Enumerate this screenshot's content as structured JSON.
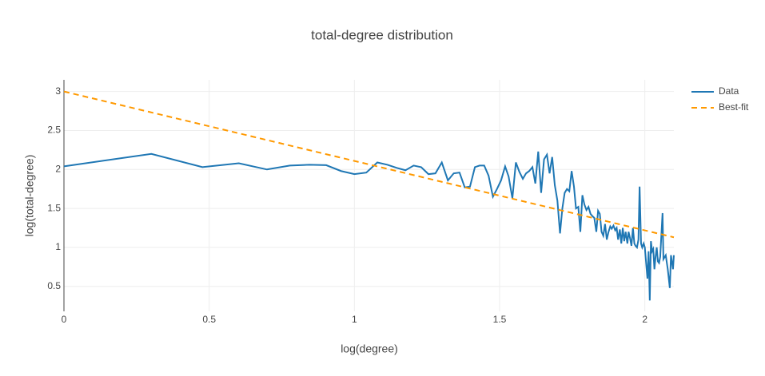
{
  "chart_data": {
    "type": "line",
    "title": "total-degree distribution",
    "x_label": "log(degree)",
    "y_label": "log(total-degree)",
    "xlim": [
      0,
      2.1
    ],
    "ylim": [
      0.18,
      3.15
    ],
    "xticks": [
      0,
      0.5,
      1,
      1.5,
      2
    ],
    "yticks": [
      0.5,
      1,
      1.5,
      2,
      2.5,
      3
    ],
    "grid": true,
    "legend": "top-right",
    "series": [
      {
        "name": "Data",
        "color": "#1f77b4",
        "dash": false,
        "x": [
          0,
          0.301,
          0.477,
          0.602,
          0.699,
          0.778,
          0.845,
          0.903,
          0.954,
          1,
          1.041,
          1.079,
          1.114,
          1.146,
          1.176,
          1.204,
          1.23,
          1.255,
          1.279,
          1.301,
          1.322,
          1.342,
          1.362,
          1.38,
          1.398,
          1.415,
          1.431,
          1.447,
          1.462,
          1.477,
          1.491,
          1.505,
          1.519,
          1.531,
          1.544,
          1.556,
          1.568,
          1.58,
          1.591,
          1.602,
          1.613,
          1.623,
          1.633,
          1.643,
          1.653,
          1.663,
          1.672,
          1.681,
          1.69,
          1.699,
          1.708,
          1.716,
          1.724,
          1.732,
          1.74,
          1.748,
          1.756,
          1.763,
          1.771,
          1.778,
          1.785,
          1.792,
          1.799,
          1.806,
          1.813,
          1.82,
          1.826,
          1.833,
          1.839,
          1.845,
          1.851,
          1.857,
          1.863,
          1.869,
          1.875,
          1.881,
          1.886,
          1.892,
          1.898,
          1.903,
          1.908,
          1.914,
          1.919,
          1.924,
          1.929,
          1.934,
          1.94,
          1.944,
          1.949,
          1.954,
          1.959,
          1.964,
          1.968,
          1.973,
          1.978,
          1.982,
          1.987,
          1.991,
          1.996,
          2,
          2.009,
          2.013,
          2.017,
          2.021,
          2.025,
          2.029,
          2.033,
          2.037,
          2.041,
          2.045,
          2.049,
          2.053,
          2.061,
          2.064,
          2.072,
          2.079,
          2.086,
          2.09,
          2.097,
          2.1
        ],
        "values": [
          2.04,
          2.2,
          2.03,
          2.08,
          2.0,
          2.05,
          2.06,
          2.055,
          1.98,
          1.94,
          1.96,
          2.09,
          2.06,
          2.02,
          1.99,
          2.05,
          2.03,
          1.94,
          1.95,
          2.09,
          1.86,
          1.95,
          1.96,
          1.77,
          1.78,
          2.03,
          2.05,
          2.05,
          1.92,
          1.65,
          1.75,
          1.86,
          2.04,
          1.91,
          1.63,
          2.09,
          1.97,
          1.88,
          1.95,
          1.98,
          2.03,
          1.82,
          2.23,
          1.7,
          2.13,
          2.19,
          1.95,
          2.16,
          1.8,
          1.6,
          1.18,
          1.5,
          1.7,
          1.75,
          1.72,
          1.98,
          1.78,
          1.5,
          1.52,
          1.2,
          1.67,
          1.55,
          1.48,
          1.52,
          1.43,
          1.4,
          1.38,
          1.2,
          1.47,
          1.43,
          1.2,
          1.15,
          1.3,
          1.1,
          1.2,
          1.27,
          1.24,
          1.28,
          1.22,
          1.25,
          1.1,
          1.23,
          1.05,
          1.25,
          1.08,
          1.2,
          1.05,
          1.2,
          1.12,
          1.02,
          1.25,
          1.05,
          1.02,
          1.0,
          1.1,
          1.78,
          1.05,
          1.0,
          1.05,
          1.0,
          0.6,
          0.95,
          0.32,
          1.08,
          0.95,
          0.98,
          0.72,
          0.88,
          1.0,
          0.82,
          0.8,
          0.88,
          1.44,
          0.85,
          0.9,
          0.72,
          0.48,
          0.9,
          0.72,
          0.9
        ]
      },
      {
        "name": "Best-fit",
        "color": "#ff9900",
        "dash": true,
        "x": [
          0,
          2.1
        ],
        "values": [
          3,
          1.13
        ]
      }
    ]
  }
}
